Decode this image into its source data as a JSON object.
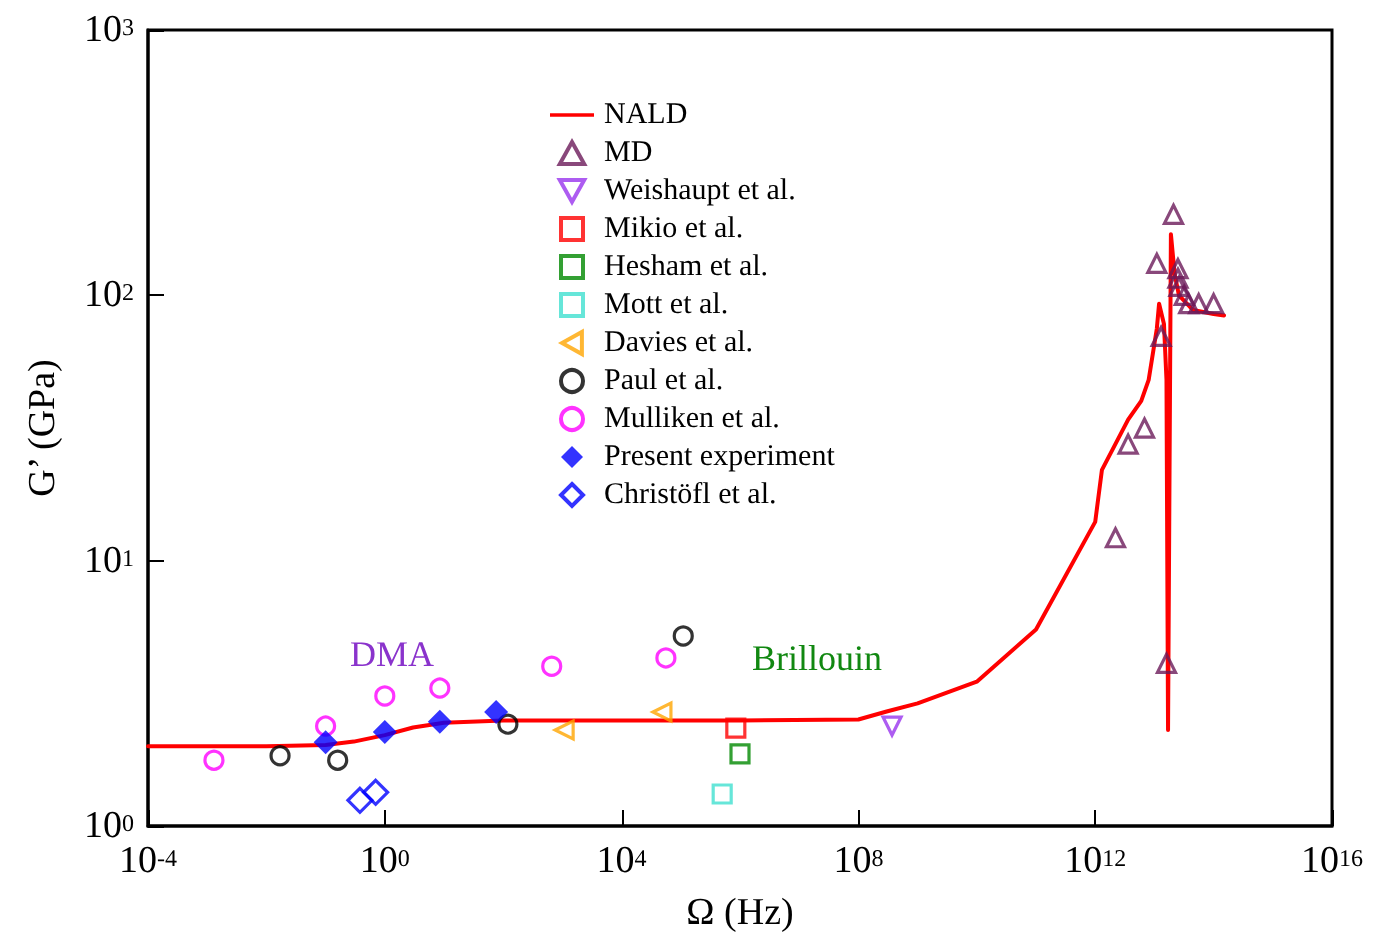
{
  "chart_data": {
    "type": "scatter",
    "xlabel": "Ω (Hz)",
    "ylabel": "G’ (GPa)",
    "xlim": [
      0.0001,
      1e+16
    ],
    "ylim": [
      1,
      1000
    ],
    "xticks": [
      {
        "value": 0.0001,
        "label": "10$^{-4}$"
      },
      {
        "value": 1,
        "label": "10$^{0}$"
      },
      {
        "value": 10000,
        "label": "10$^{4}$"
      },
      {
        "value": 100000000,
        "label": "10$^{8}$"
      },
      {
        "value": 1000000000000,
        "label": "10$^{12}$"
      },
      {
        "value": 1e+16,
        "label": "10$^{16}$"
      }
    ],
    "yticks": [
      {
        "value": 1,
        "label": "10$^{0}$"
      },
      {
        "value": 10,
        "label": "10$^{1}$"
      },
      {
        "value": 100,
        "label": "10$^{2}$"
      },
      {
        "value": 1000,
        "label": "10$^{3}$"
      }
    ],
    "log": "xy",
    "grid": false,
    "legend": "top",
    "annotations": [
      "DMA",
      "Brillouin"
    ],
    "series": [
      {
        "name": "NALD",
        "type": "line",
        "marker": "none",
        "line_style": "solid",
        "color": "#ff0000",
        "x": [
          0.0001,
          0.01,
          0.1,
          0.3,
          1,
          3,
          10,
          100,
          10000,
          1000000,
          100000000,
          300000000,
          1000000000,
          10000000000,
          100000000000,
          1000000000000,
          1300000000000,
          3600000000000,
          6000000000000,
          8000000000000,
          11000000000000,
          12000000000000,
          14500000000000,
          16000000000000,
          17000000000000,
          19000000000000,
          22000000000000,
          26000000000000,
          45000000000000,
          100000000000000,
          150000000000000
        ],
        "values": [
          2.0,
          2.0,
          2.02,
          2.08,
          2.2,
          2.35,
          2.45,
          2.5,
          2.5,
          2.5,
          2.52,
          2.7,
          2.9,
          3.5,
          5.5,
          14,
          22,
          34,
          40,
          48,
          75,
          93,
          78,
          48,
          2.3,
          170,
          120,
          100,
          88,
          85,
          84
        ]
      },
      {
        "name": "MD",
        "marker": "triangle-open",
        "color": "#6b1a5a",
        "x": [
          21000000000000,
          11000000000000,
          25000000000000,
          25000000000000,
          26000000000000,
          32000000000000,
          38000000000000,
          56000000000000,
          100000000000000,
          13000000000000,
          6800000000000,
          3600000000000,
          2200000000000,
          16000000000000
        ],
        "values": [
          202,
          132,
          126,
          116,
          108,
          100,
          93,
          93,
          93,
          70,
          31.6,
          27.5,
          12.2,
          4.1
        ]
      },
      {
        "name": "Weishaupt et al.",
        "marker": "triangle-down-open",
        "color": "#9933ee",
        "x": [
          370000000
        ],
        "values": [
          2.38
        ]
      },
      {
        "name": "Mikio et al.",
        "marker": "square-open",
        "color": "#ff0000",
        "x": [
          850000
        ],
        "values": [
          2.34
        ]
      },
      {
        "name": "Hesham et al.",
        "marker": "square-open",
        "color": "#008800",
        "x": [
          1000000
        ],
        "values": [
          1.87
        ]
      },
      {
        "name": "Mott et al.",
        "marker": "square-open",
        "color": "#40e0d0",
        "x": [
          500000
        ],
        "values": [
          1.32
        ]
      },
      {
        "name": "Davies et al.",
        "marker": "triangle-left-open",
        "color": "#ffa500",
        "x": [
          1070,
          48000
        ],
        "values": [
          2.3,
          2.69
        ]
      },
      {
        "name": "Paul et al.",
        "marker": "circle-open",
        "color": "#000000",
        "x": [
          0.017,
          0.16,
          120,
          110000
        ],
        "values": [
          1.84,
          1.77,
          2.42,
          5.2
        ]
      },
      {
        "name": "Mulliken et al.",
        "marker": "circle-open",
        "color": "#ff00ff",
        "x": [
          0.0013,
          0.1,
          1,
          8.5,
          660,
          56000
        ],
        "values": [
          1.77,
          2.38,
          3.09,
          3.31,
          4.0,
          4.3
        ]
      },
      {
        "name": "Present experiment",
        "marker": "diamond",
        "color": "#0000ff",
        "x": [
          0.1,
          1,
          8.5,
          76
        ],
        "values": [
          2.07,
          2.26,
          2.47,
          2.69
        ]
      },
      {
        "name": "Christöfl et al.",
        "marker": "diamond-open",
        "color": "#0000ff",
        "x": [
          0.38,
          0.7
        ],
        "values": [
          1.25,
          1.34
        ]
      }
    ]
  }
}
